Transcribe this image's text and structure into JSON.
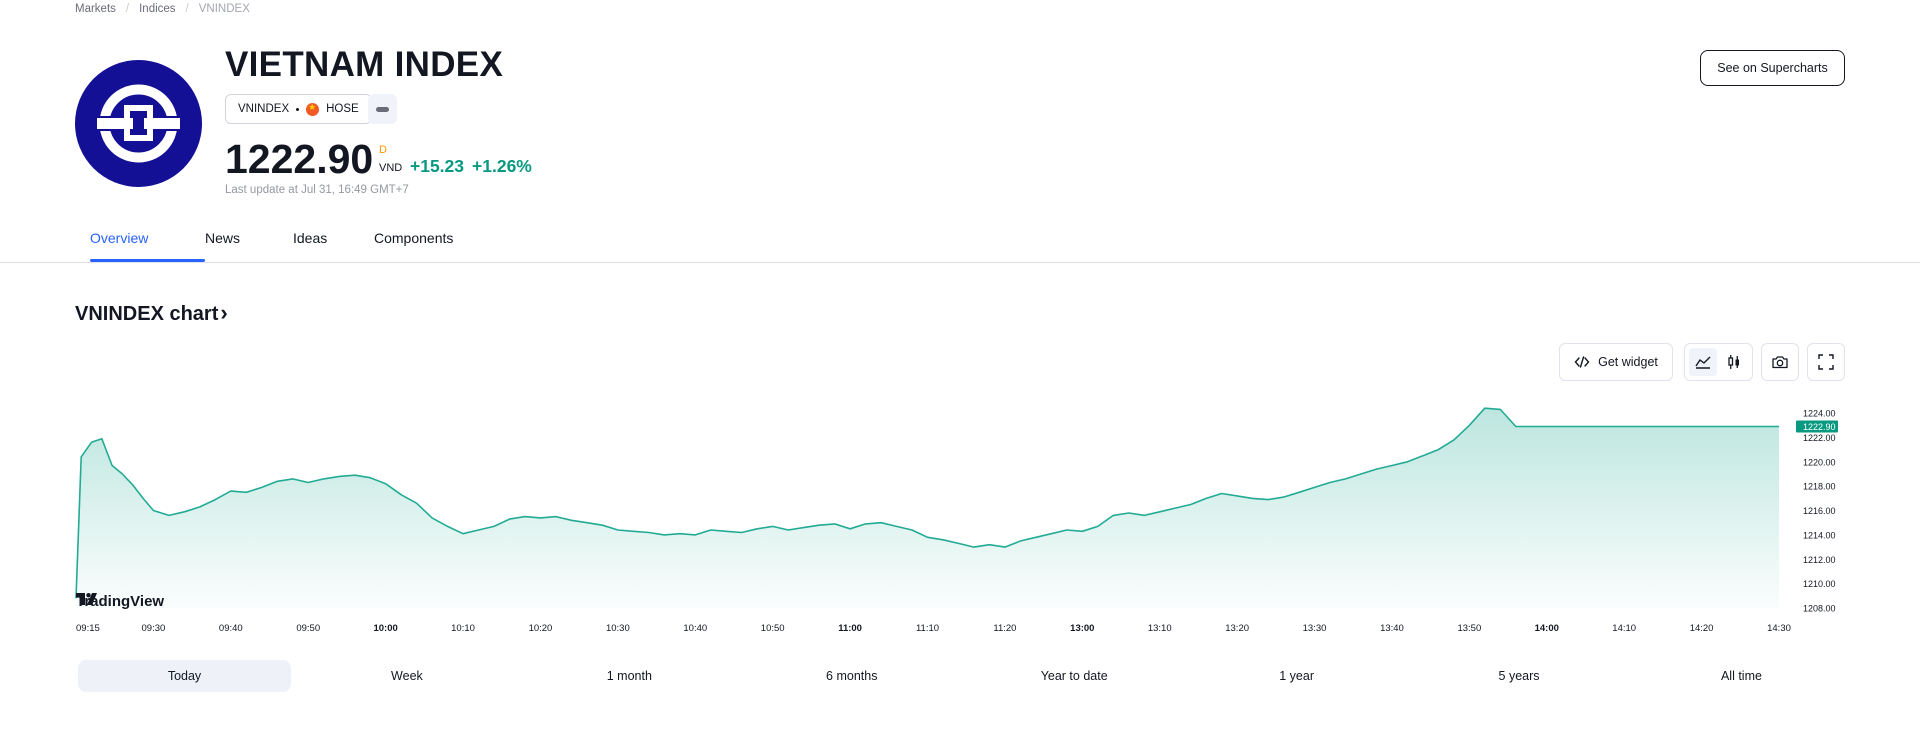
{
  "breadcrumb": {
    "items": [
      "Markets",
      "Indices",
      "VNINDEX"
    ]
  },
  "header": {
    "title": "VIETNAM INDEX",
    "symbol": "VNINDEX",
    "exchange": "HOSE",
    "price": "1222.90",
    "price_flag": "D",
    "currency": "VND",
    "change": "+15.23",
    "change_percent": "+1.26%",
    "last_update": "Last update at Jul 31, 16:49 GMT+7",
    "supercharts_label": "See on Supercharts"
  },
  "tabs": [
    {
      "label": "Overview",
      "active": true
    },
    {
      "label": "News",
      "active": false
    },
    {
      "label": "Ideas",
      "active": false
    },
    {
      "label": "Components",
      "active": false
    }
  ],
  "chart_section": {
    "heading": "VNINDEX chart",
    "get_widget_label": "Get widget",
    "watermark": "TradingView",
    "range_buttons": [
      {
        "label": "Today",
        "active": true
      },
      {
        "label": "Week",
        "active": false
      },
      {
        "label": "1 month",
        "active": false
      },
      {
        "label": "6 months",
        "active": false
      },
      {
        "label": "Year to date",
        "active": false
      },
      {
        "label": "1 year",
        "active": false
      },
      {
        "label": "5 years",
        "active": false
      },
      {
        "label": "All time",
        "active": false
      }
    ]
  },
  "icons": {
    "get_widget": "code-icon",
    "area_chart": "area-chart-icon",
    "candles": "candlestick-icon",
    "snapshot": "camera-icon",
    "fullscreen": "fullscreen-icon"
  },
  "colors": {
    "accent": "#2962ff",
    "positive": "#089981",
    "line": "#22ab94",
    "logo": "#131096",
    "price_flag": "#ff9800"
  },
  "chart_data": {
    "type": "area",
    "x_ticks": [
      "09:15",
      "09:30",
      "09:40",
      "09:50",
      "10:00",
      "10:10",
      "10:20",
      "10:30",
      "10:40",
      "10:50",
      "11:00",
      "11:10",
      "11:20",
      "13:00",
      "13:10",
      "13:20",
      "13:30",
      "13:40",
      "13:50",
      "14:00",
      "14:10",
      "14:20",
      "14:30"
    ],
    "bold_ticks": [
      "10:00",
      "11:00",
      "13:00",
      "14:00"
    ],
    "y_ticks": [
      "1224.00",
      "1222.00",
      "1220.00",
      "1218.00",
      "1216.00",
      "1214.00",
      "1212.00",
      "1210.00",
      "1208.00"
    ],
    "ylim": [
      1208,
      1224.5
    ],
    "last_value_label": "1222.90",
    "x_values": [
      "09:15",
      "09:16",
      "09:18",
      "09:20",
      "09:22",
      "09:24",
      "09:26",
      "09:28",
      "09:30",
      "09:32",
      "09:34",
      "09:36",
      "09:38",
      "09:40",
      "09:42",
      "09:44",
      "09:46",
      "09:48",
      "09:50",
      "09:52",
      "09:54",
      "09:56",
      "09:58",
      "10:00",
      "10:02",
      "10:04",
      "10:06",
      "10:08",
      "10:10",
      "10:12",
      "10:14",
      "10:16",
      "10:18",
      "10:20",
      "10:22",
      "10:24",
      "10:26",
      "10:28",
      "10:30",
      "10:32",
      "10:34",
      "10:36",
      "10:38",
      "10:40",
      "10:42",
      "10:44",
      "10:46",
      "10:48",
      "10:50",
      "10:52",
      "10:54",
      "10:56",
      "10:58",
      "11:00",
      "11:02",
      "11:04",
      "11:06",
      "11:08",
      "11:10",
      "11:12",
      "11:14",
      "11:16",
      "11:18",
      "11:20",
      "11:22",
      "11:24",
      "11:26",
      "11:28",
      "13:00",
      "13:02",
      "13:04",
      "13:06",
      "13:08",
      "13:10",
      "13:12",
      "13:14",
      "13:16",
      "13:18",
      "13:20",
      "13:22",
      "13:24",
      "13:26",
      "13:28",
      "13:30",
      "13:32",
      "13:34",
      "13:36",
      "13:38",
      "13:40",
      "13:42",
      "13:44",
      "13:46",
      "13:48",
      "13:50",
      "13:52",
      "13:54",
      "13:56",
      "13:58",
      "14:00",
      "14:02",
      "14:04",
      "14:06",
      "14:08",
      "14:10",
      "14:12",
      "14:14",
      "14:16",
      "14:18",
      "14:20",
      "14:22",
      "14:24",
      "14:26",
      "14:28",
      "14:29",
      "14:30"
    ],
    "values": [
      1208.8,
      1220.4,
      1221.6,
      1221.9,
      1219.7,
      1219.0,
      1218.1,
      1217.0,
      1216.0,
      1215.6,
      1215.9,
      1216.3,
      1216.9,
      1217.6,
      1217.5,
      1217.9,
      1218.4,
      1218.6,
      1218.3,
      1218.6,
      1218.8,
      1218.9,
      1218.7,
      1218.2,
      1217.3,
      1216.6,
      1215.4,
      1214.7,
      1214.1,
      1214.4,
      1214.7,
      1215.3,
      1215.5,
      1215.4,
      1215.5,
      1215.2,
      1215.0,
      1214.8,
      1214.4,
      1214.3,
      1214.2,
      1214.0,
      1214.1,
      1214.0,
      1214.4,
      1214.3,
      1214.2,
      1214.5,
      1214.7,
      1214.4,
      1214.6,
      1214.8,
      1214.9,
      1214.5,
      1214.9,
      1215.0,
      1214.7,
      1214.4,
      1213.8,
      1213.6,
      1213.3,
      1213.0,
      1213.2,
      1213.0,
      1213.5,
      1213.8,
      1214.1,
      1214.4,
      1214.3,
      1214.7,
      1215.6,
      1215.8,
      1215.6,
      1215.9,
      1216.2,
      1216.5,
      1217.0,
      1217.4,
      1217.2,
      1217.0,
      1216.9,
      1217.1,
      1217.5,
      1217.9,
      1218.3,
      1218.6,
      1219.0,
      1219.4,
      1219.7,
      1220.0,
      1220.5,
      1221.0,
      1221.8,
      1223.0,
      1224.4,
      1224.3,
      1222.9,
      1222.9,
      1222.9,
      1222.9,
      1222.9,
      1222.9,
      1222.9,
      1222.9,
      1222.9,
      1222.9,
      1222.9,
      1222.9,
      1222.9,
      1222.9,
      1222.9,
      1222.9,
      1222.9,
      1222.9,
      1222.9
    ]
  }
}
